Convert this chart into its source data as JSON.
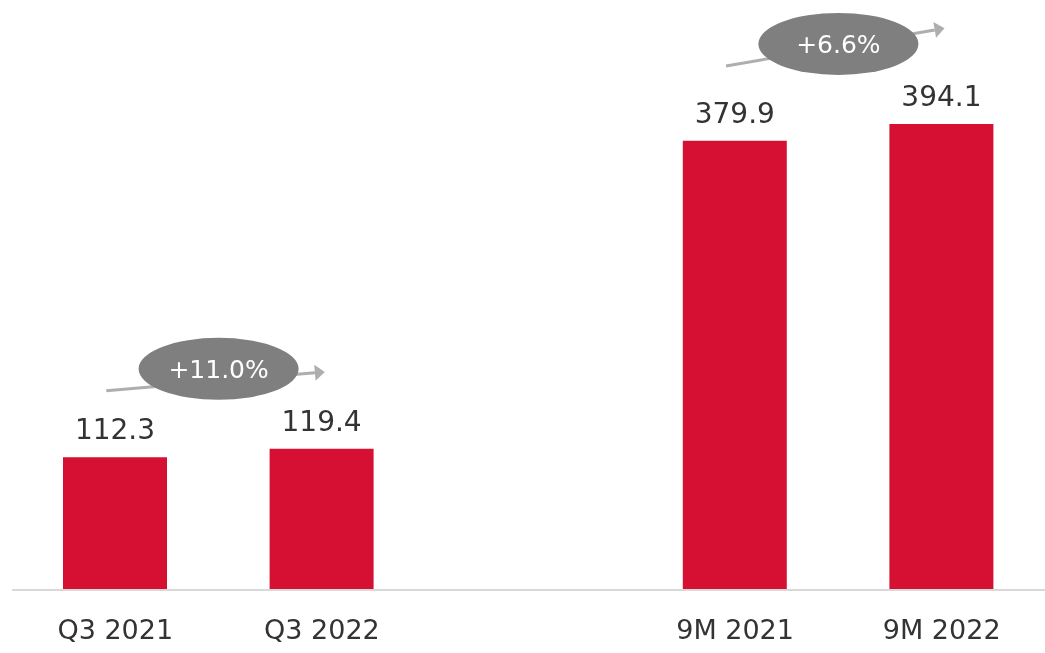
{
  "chart_data": {
    "type": "bar",
    "categories": [
      "Q3 2021",
      "Q3 2022",
      null,
      "9M 2021",
      "9M 2022"
    ],
    "values": [
      112.3,
      119.4,
      null,
      379.9,
      394.1
    ],
    "color": "#d51033",
    "data_labels": true,
    "annotations": [
      "+11.0%",
      "+6.6%"
    ]
  }
}
